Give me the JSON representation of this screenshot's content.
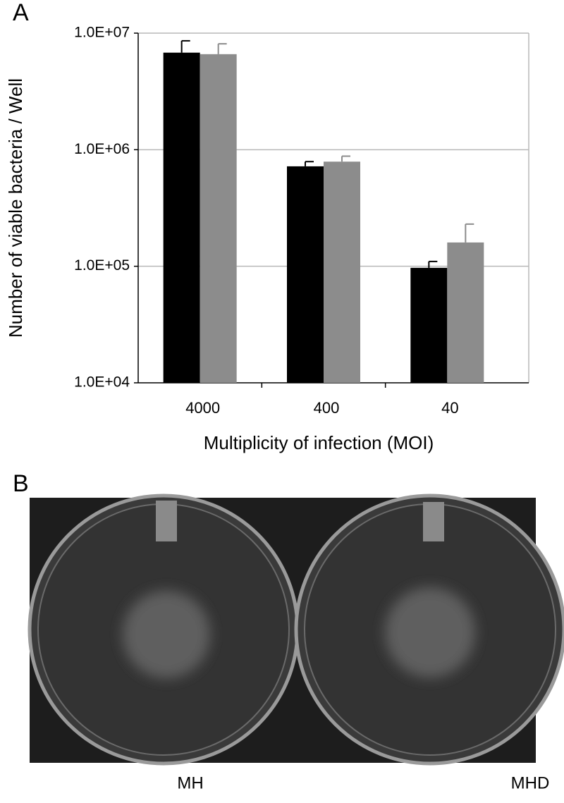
{
  "panel_labels": [
    "A",
    "B"
  ],
  "chart_data": {
    "type": "bar",
    "xlabel": "Multiplicity of infection (MOI)",
    "ylabel": "Number of viable bacteria  / Well",
    "categories": [
      "4000",
      "400",
      "40"
    ],
    "series": [
      {
        "color": "#000000",
        "values": [
          6800000,
          720000,
          97000
        ],
        "errors": [
          1800000,
          70000,
          13000
        ]
      },
      {
        "color": "#8c8c8c",
        "values": [
          6600000,
          790000,
          160000
        ],
        "errors": [
          1500000,
          90000,
          70000
        ]
      }
    ],
    "log_scale": true,
    "ylim": [
      10000,
      10000000
    ],
    "yticks": [
      {
        "value": 10000,
        "label": "1.0E+04"
      },
      {
        "value": 100000,
        "label": "1.0E+05"
      },
      {
        "value": 1000000,
        "label": "1.0E+06"
      },
      {
        "value": 10000000,
        "label": "1.0E+07"
      }
    ],
    "grid": true
  },
  "plate_labels": [
    "MH",
    "MHD"
  ]
}
